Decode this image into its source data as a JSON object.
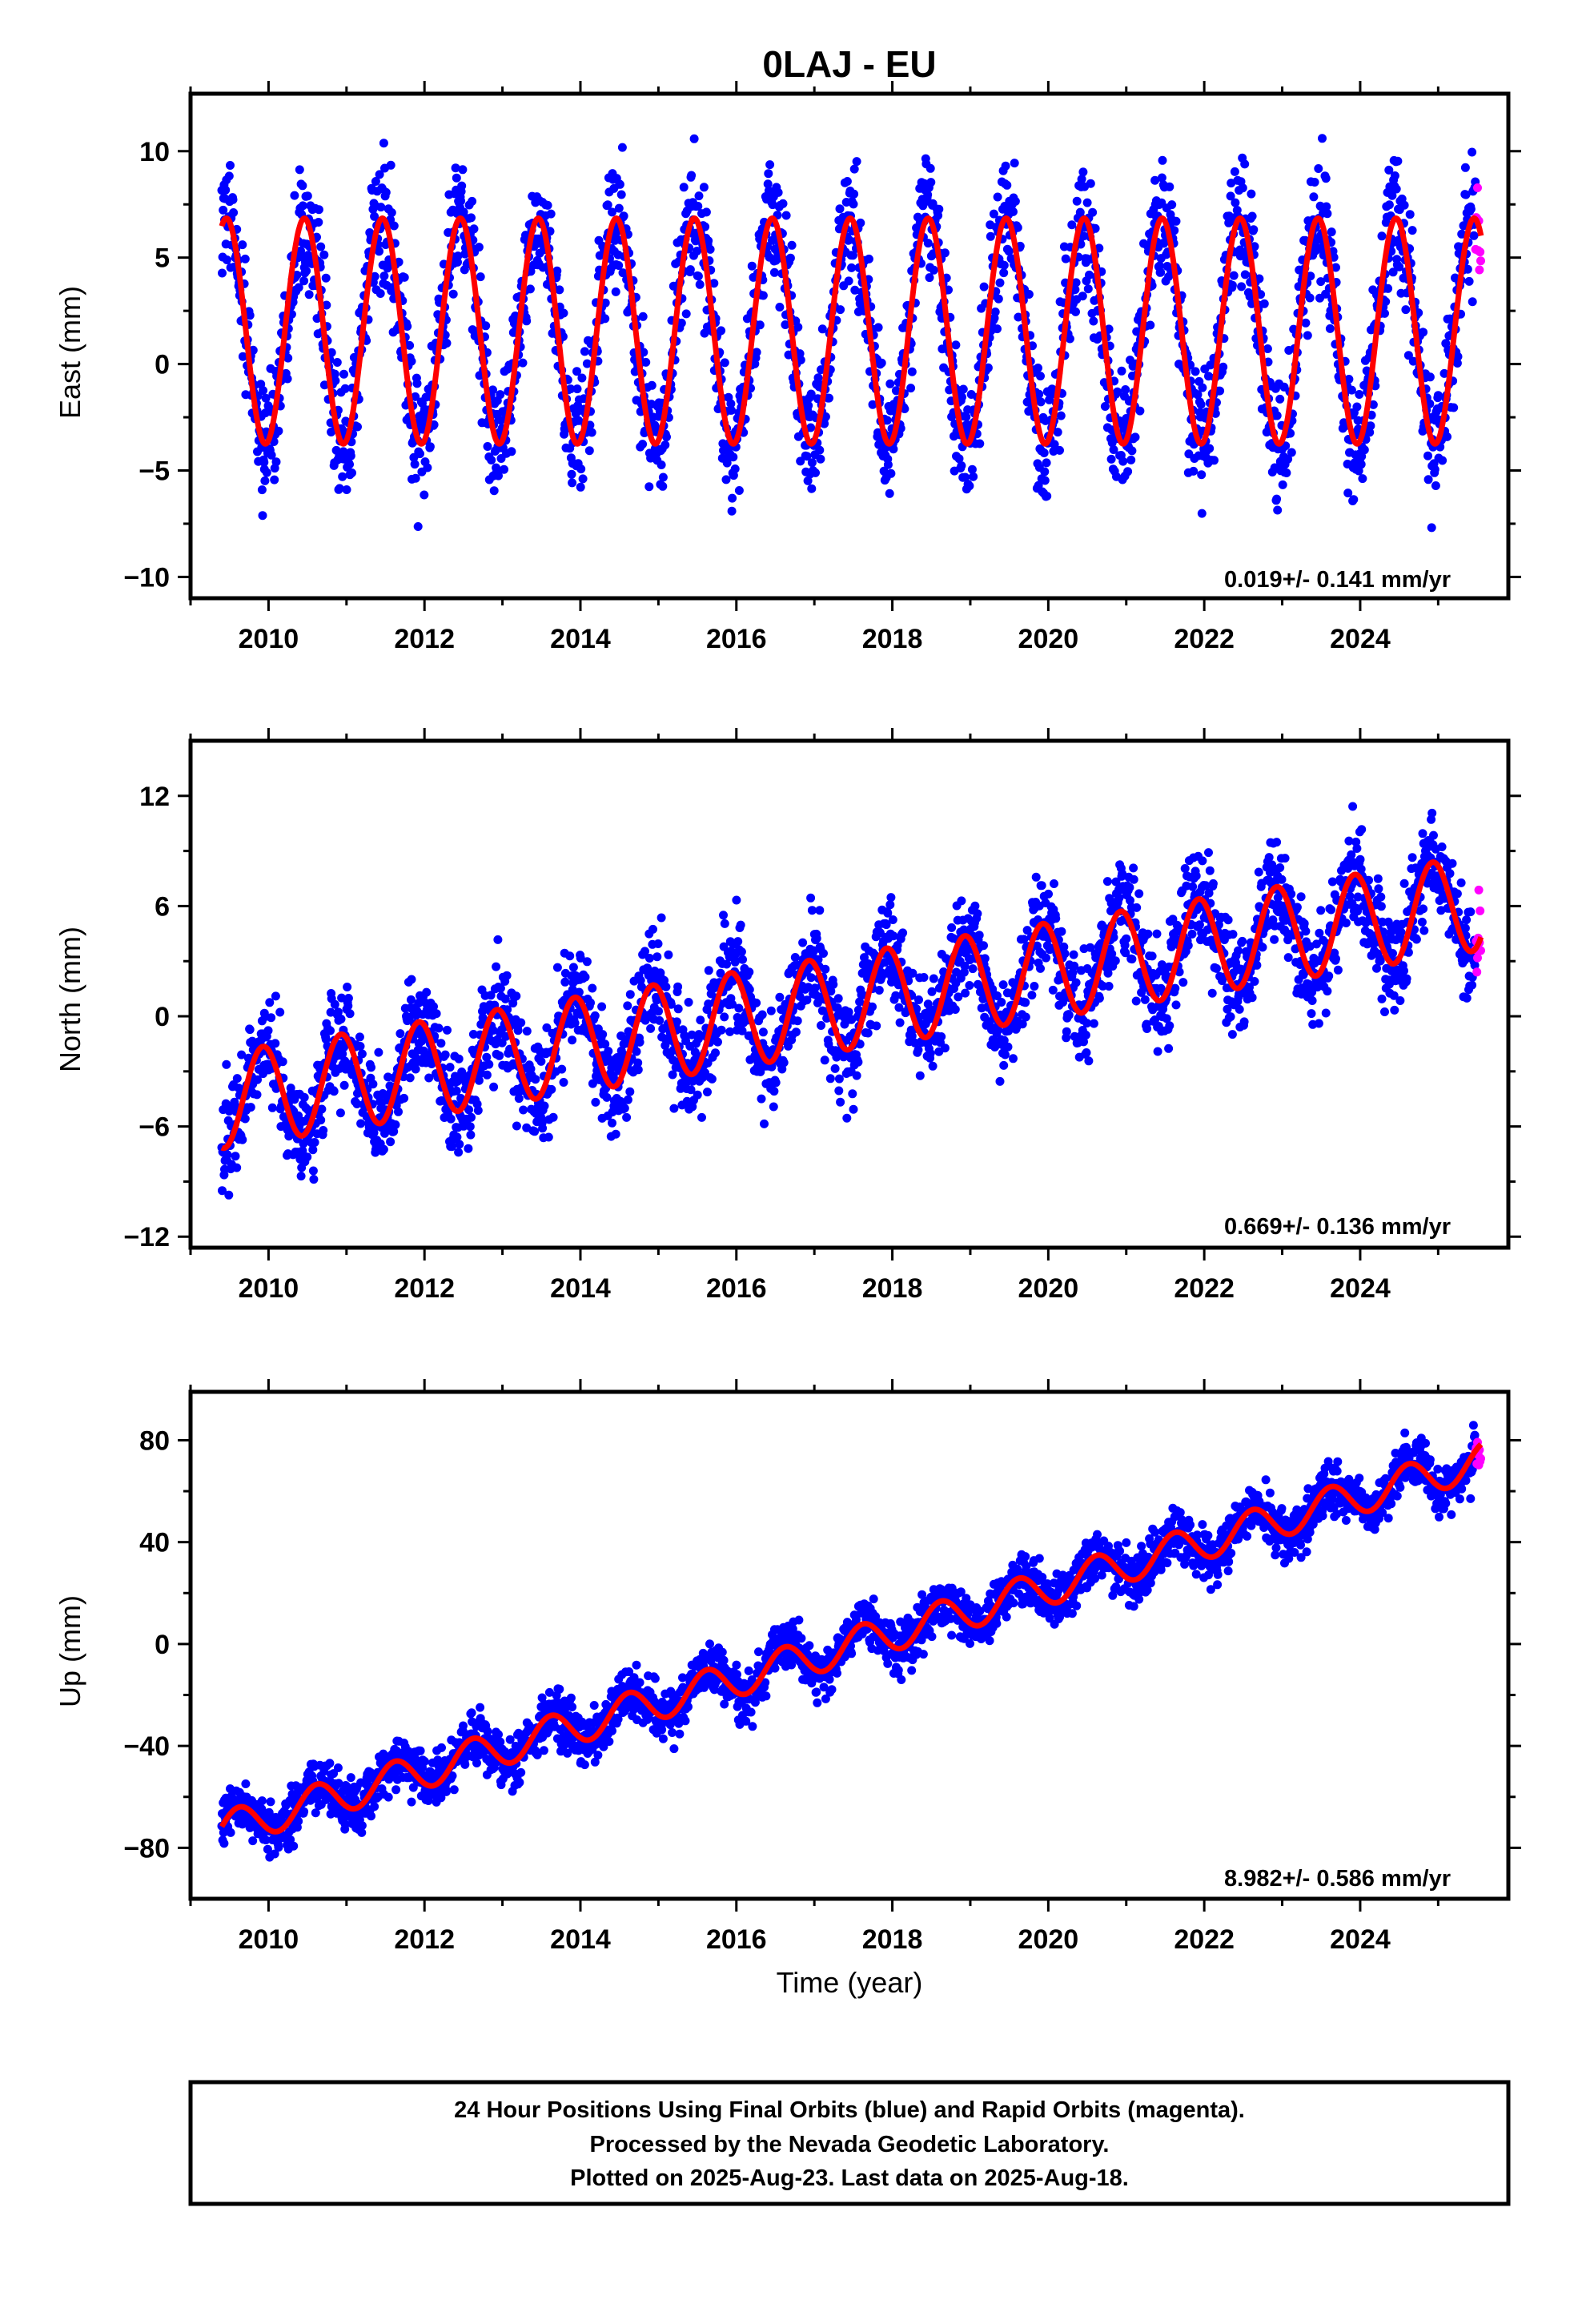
{
  "title": "0LAJ - EU",
  "x_axis_label": "Time (year)",
  "footer": [
    "24 Hour Positions Using Final Orbits (blue) and Rapid Orbits (magenta).",
    "Processed by the Nevada Geodetic Laboratory.",
    "Plotted on 2025-Aug-23. Last data on 2025-Aug-18."
  ],
  "colors": {
    "final_orbits": "#0000ff",
    "rapid_orbits": "#ff00ff",
    "model_fit": "#ff0000",
    "frame": "#000000"
  },
  "chart_data": [
    {
      "type": "scatter",
      "component": "East",
      "ylabel": "East (mm)",
      "xlim": [
        2009.0,
        2025.9
      ],
      "ylim": [
        -11.0,
        12.7
      ],
      "xticks": [
        2010,
        2012,
        2014,
        2016,
        2018,
        2020,
        2022,
        2024
      ],
      "yticks": [
        -10,
        -5,
        0,
        5,
        10
      ],
      "ytick_labels": [
        "−10",
        "−5",
        "0",
        "5",
        "10"
      ],
      "rate_label": "0.019+/- 0.141 mm/yr",
      "data_start": 2009.4,
      "data_end": 2025.55,
      "rapid_start": 2025.48,
      "model": {
        "offset": 1.55,
        "rate_mm_per_yr": 0.019,
        "amplitude": 5.3,
        "peak_phase": 0.46
      },
      "scatter_std": 1.5,
      "series": [
        {
          "name": "Final Orbits (blue)",
          "color": "#0000ff"
        },
        {
          "name": "Rapid Orbits (magenta)",
          "color": "#ff00ff"
        }
      ]
    },
    {
      "type": "scatter",
      "component": "North",
      "ylabel": "North (mm)",
      "xlim": [
        2009.0,
        2025.9
      ],
      "ylim": [
        -12.6,
        15.0
      ],
      "xticks": [
        2010,
        2012,
        2014,
        2016,
        2018,
        2020,
        2022,
        2024
      ],
      "yticks": [
        -12,
        -6,
        0,
        6,
        12
      ],
      "ytick_labels": [
        "−12",
        "−6",
        "0",
        "6",
        "12"
      ],
      "rate_label": "0.669+/- 0.136 mm/yr",
      "data_start": 2009.4,
      "data_end": 2025.55,
      "rapid_start": 2025.48,
      "model": {
        "offset": -4.6,
        "rate_mm_per_yr": 0.669,
        "t0": 2009.4,
        "amplitude": 2.6,
        "peak_phase": 0.93
      },
      "scatter_std": 1.4,
      "series": [
        {
          "name": "Final Orbits (blue)",
          "color": "#0000ff"
        },
        {
          "name": "Rapid Orbits (magenta)",
          "color": "#ff00ff"
        }
      ]
    },
    {
      "type": "scatter",
      "component": "Up",
      "ylabel": "Up (mm)",
      "xlim": [
        2009.0,
        2025.9
      ],
      "ylim": [
        -100,
        99
      ],
      "xticks": [
        2010,
        2012,
        2014,
        2016,
        2018,
        2020,
        2022,
        2024
      ],
      "yticks": [
        -80,
        -40,
        0,
        40,
        80
      ],
      "ytick_labels": [
        "−80",
        "−40",
        "0",
        "40",
        "80"
      ],
      "rate_label": "8.982+/- 0.586 mm/yr",
      "data_start": 2009.4,
      "data_end": 2025.55,
      "rapid_start": 2025.48,
      "model": {
        "offset": -73.0,
        "rate_mm_per_yr": 8.982,
        "t0": 2009.4,
        "amplitude": 7.0,
        "peak_phase": 0.62
      },
      "scatter_std": 5.0,
      "series": [
        {
          "name": "Final Orbits (blue)",
          "color": "#0000ff"
        },
        {
          "name": "Rapid Orbits (magenta)",
          "color": "#ff00ff"
        }
      ]
    }
  ]
}
